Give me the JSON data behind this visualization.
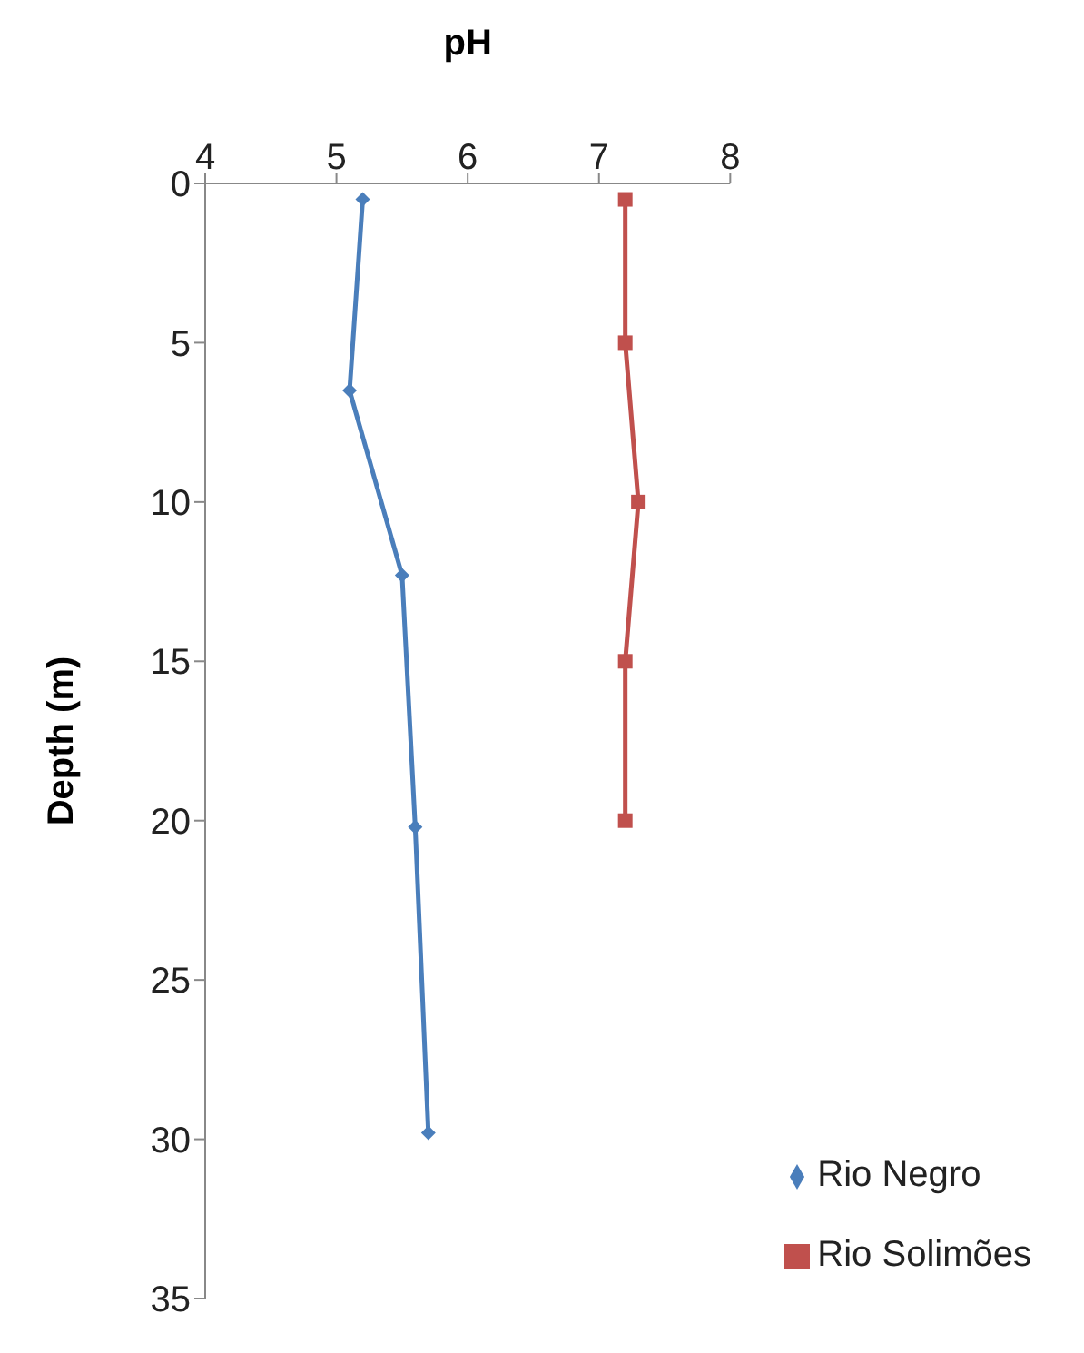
{
  "chart_data": {
    "type": "line",
    "xlabel": "pH",
    "ylabel": "Depth (m)",
    "xlim": [
      4,
      8
    ],
    "xticks": [
      4,
      5,
      6,
      7,
      8
    ],
    "ylim": [
      35,
      0
    ],
    "yticks": [
      0,
      5,
      10,
      15,
      20,
      25,
      30,
      35
    ],
    "grid": false,
    "legend": "bottom right",
    "line_style": "solid",
    "series": [
      {
        "name": "Rio Negro",
        "color": "#4a7ebb",
        "marker": "diamond",
        "x": [
          5.2,
          5.1,
          5.5,
          5.6,
          5.7
        ],
        "values": [
          0.5,
          6.5,
          12.3,
          20.2,
          29.8
        ]
      },
      {
        "name": "Rio Solimões",
        "color": "#c0504d",
        "marker": "square",
        "x": [
          7.2,
          7.2,
          7.3,
          7.2,
          7.2
        ],
        "values": [
          0.5,
          5,
          10,
          15,
          20
        ]
      }
    ]
  }
}
